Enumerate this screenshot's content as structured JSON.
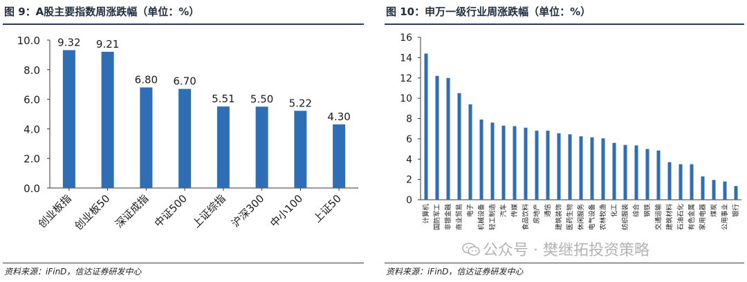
{
  "figures": [
    {
      "title": "图 9：A股主要指数周涨跌幅（单位：%）",
      "source": "资料来源：iFinD，信达证券研发中心"
    },
    {
      "title": "图 10：申万一级行业周涨跌幅（单位：%）",
      "source": "资料来源：iFinD，信达证券研发中心"
    }
  ],
  "watermark": "公众号 · 樊继拓投资策略",
  "colors": {
    "bar": "#2f6db5",
    "rule": "#2a3c57"
  },
  "chart_data": [
    {
      "type": "bar",
      "categories": [
        "创业板指",
        "创业板50",
        "深证成指",
        "中证500",
        "上证综指",
        "沪深300",
        "中小100",
        "上证50"
      ],
      "values": [
        9.32,
        9.21,
        6.8,
        6.7,
        5.51,
        5.5,
        5.22,
        4.3
      ],
      "data_labels": [
        "9.32",
        "9.21",
        "6.80",
        "6.70",
        "5.51",
        "5.50",
        "5.22",
        "4.30"
      ],
      "yticks": [
        "0.0",
        "2.0",
        "4.0",
        "6.0",
        "8.0",
        "10.0"
      ],
      "ylim": [
        0,
        10
      ],
      "grid": false
    },
    {
      "type": "bar",
      "categories": [
        "计算机",
        "国防军工",
        "非银金融",
        "商业贸易",
        "电子",
        "机械设备",
        "轻工制造",
        "汽车",
        "传媒",
        "食品饮料",
        "房地产",
        "通信",
        "建筑装饰",
        "医药生物",
        "休闲服务",
        "电气设备",
        "农林牧渔",
        "化工",
        "纺织服装",
        "综合",
        "钢铁",
        "交通运输",
        "建筑材料",
        "石油石化",
        "有色金属",
        "家用电器",
        "煤炭",
        "公用事业",
        "银行"
      ],
      "values": [
        14.4,
        12.2,
        12.0,
        10.5,
        9.4,
        7.9,
        7.6,
        7.3,
        7.25,
        7.1,
        6.8,
        6.8,
        6.55,
        6.45,
        6.25,
        6.15,
        6.05,
        5.6,
        5.4,
        5.35,
        5.0,
        4.85,
        3.7,
        3.5,
        3.5,
        2.3,
        1.95,
        1.8,
        1.35
      ],
      "yticks": [
        "0",
        "2",
        "4",
        "6",
        "8",
        "10",
        "12",
        "14",
        "16"
      ],
      "ylim": [
        0,
        16
      ],
      "grid": false
    }
  ]
}
